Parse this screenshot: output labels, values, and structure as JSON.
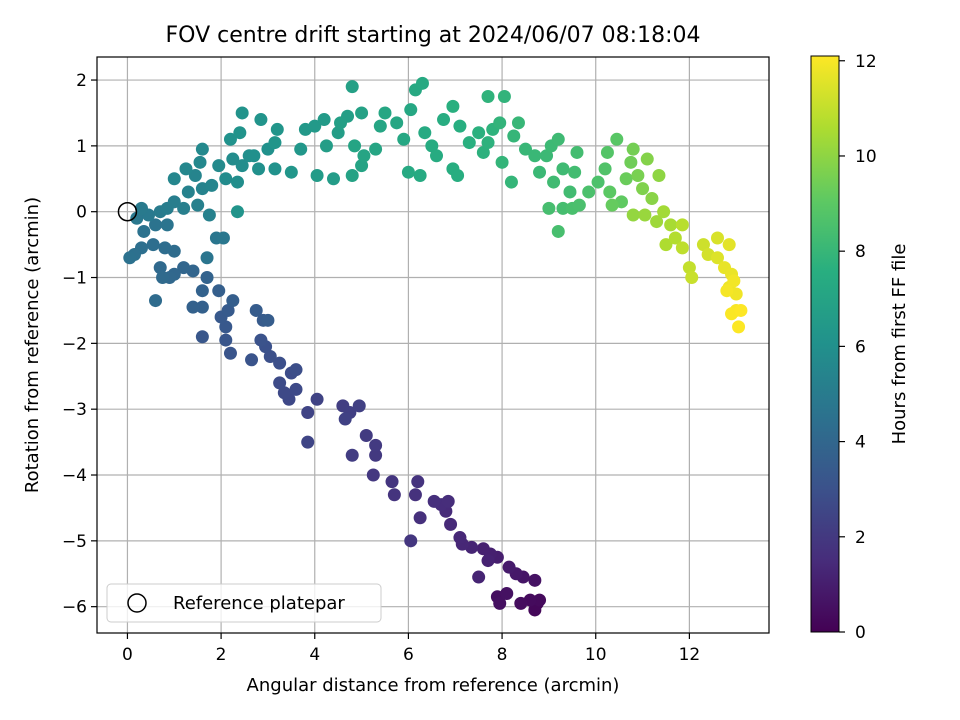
{
  "chart_data": {
    "type": "scatter",
    "title": "FOV centre drift starting at 2024/06/07 08:18:04",
    "xlabel": "Angular distance from reference (arcmin)",
    "ylabel": "Rotation from reference (arcmin)",
    "xlim": [
      -0.65,
      13.7
    ],
    "ylim": [
      -6.4,
      2.35
    ],
    "xticks": [
      0,
      2,
      4,
      6,
      8,
      10,
      12
    ],
    "yticks": [
      -6,
      -5,
      -4,
      -3,
      -2,
      -1,
      0,
      1,
      2
    ],
    "grid": true,
    "colormap": "viridis",
    "colorbar": {
      "label": "Hours from first FF file",
      "range": [
        0,
        12.1
      ],
      "ticks": [
        0,
        2,
        4,
        6,
        8,
        10,
        12
      ]
    },
    "legend": {
      "position": "lower-left",
      "entries": [
        {
          "label": "Reference platepar",
          "marker": "open-circle",
          "color": "#000000"
        }
      ]
    },
    "reference_point": {
      "x": 0,
      "y": 0
    },
    "points": [
      {
        "x": 8.75,
        "y": -5.95,
        "t": 0.1
      },
      {
        "x": 8.7,
        "y": -6.05,
        "t": 0.2
      },
      {
        "x": 8.8,
        "y": -5.9,
        "t": 0.3
      },
      {
        "x": 8.6,
        "y": -5.9,
        "t": 0.35
      },
      {
        "x": 8.4,
        "y": -5.95,
        "t": 0.4
      },
      {
        "x": 7.9,
        "y": -5.85,
        "t": 0.45
      },
      {
        "x": 7.95,
        "y": -5.95,
        "t": 0.5
      },
      {
        "x": 8.1,
        "y": -5.8,
        "t": 0.55
      },
      {
        "x": 8.7,
        "y": -5.6,
        "t": 0.6
      },
      {
        "x": 8.45,
        "y": -5.55,
        "t": 0.7
      },
      {
        "x": 8.3,
        "y": -5.5,
        "t": 0.8
      },
      {
        "x": 8.15,
        "y": -5.4,
        "t": 0.9
      },
      {
        "x": 7.9,
        "y": -5.25,
        "t": 1.0
      },
      {
        "x": 7.75,
        "y": -5.2,
        "t": 1.05
      },
      {
        "x": 7.6,
        "y": -5.12,
        "t": 1.1
      },
      {
        "x": 7.7,
        "y": -5.3,
        "t": 1.15
      },
      {
        "x": 7.5,
        "y": -5.55,
        "t": 1.2
      },
      {
        "x": 7.35,
        "y": -5.1,
        "t": 1.25
      },
      {
        "x": 7.15,
        "y": -5.05,
        "t": 1.3
      },
      {
        "x": 7.1,
        "y": -4.95,
        "t": 1.35
      },
      {
        "x": 6.9,
        "y": -4.75,
        "t": 1.4
      },
      {
        "x": 6.8,
        "y": -4.55,
        "t": 1.45
      },
      {
        "x": 6.7,
        "y": -4.45,
        "t": 1.5
      },
      {
        "x": 6.85,
        "y": -4.4,
        "t": 1.55
      },
      {
        "x": 6.55,
        "y": -4.4,
        "t": 1.6
      },
      {
        "x": 6.25,
        "y": -4.65,
        "t": 1.65
      },
      {
        "x": 6.15,
        "y": -4.3,
        "t": 1.7
      },
      {
        "x": 6.2,
        "y": -4.1,
        "t": 1.75
      },
      {
        "x": 5.7,
        "y": -4.3,
        "t": 1.8
      },
      {
        "x": 5.65,
        "y": -4.1,
        "t": 1.85
      },
      {
        "x": 6.05,
        "y": -5.0,
        "t": 1.9
      },
      {
        "x": 5.25,
        "y": -4.0,
        "t": 1.95
      },
      {
        "x": 5.3,
        "y": -3.7,
        "t": 2.0
      },
      {
        "x": 5.3,
        "y": -3.55,
        "t": 2.05
      },
      {
        "x": 5.1,
        "y": -3.4,
        "t": 2.1
      },
      {
        "x": 4.8,
        "y": -3.7,
        "t": 2.15
      },
      {
        "x": 4.6,
        "y": -2.95,
        "t": 2.2
      },
      {
        "x": 4.75,
        "y": -3.05,
        "t": 2.25
      },
      {
        "x": 4.95,
        "y": -2.95,
        "t": 2.3
      },
      {
        "x": 4.65,
        "y": -3.15,
        "t": 2.35
      },
      {
        "x": 4.05,
        "y": -2.85,
        "t": 2.4
      },
      {
        "x": 3.85,
        "y": -3.05,
        "t": 2.45
      },
      {
        "x": 3.85,
        "y": -3.5,
        "t": 2.5
      },
      {
        "x": 3.45,
        "y": -2.85,
        "t": 2.6
      },
      {
        "x": 3.35,
        "y": -2.75,
        "t": 2.65
      },
      {
        "x": 3.6,
        "y": -2.7,
        "t": 2.7
      },
      {
        "x": 3.25,
        "y": -2.6,
        "t": 2.75
      },
      {
        "x": 3.5,
        "y": -2.45,
        "t": 2.8
      },
      {
        "x": 3.6,
        "y": -2.4,
        "t": 2.85
      },
      {
        "x": 3.25,
        "y": -2.3,
        "t": 2.9
      },
      {
        "x": 3.05,
        "y": -2.2,
        "t": 2.95
      },
      {
        "x": 2.95,
        "y": -2.05,
        "t": 3.0
      },
      {
        "x": 2.85,
        "y": -1.95,
        "t": 3.05
      },
      {
        "x": 2.65,
        "y": -2.25,
        "t": 3.1
      },
      {
        "x": 2.2,
        "y": -2.15,
        "t": 3.15
      },
      {
        "x": 2.1,
        "y": -1.95,
        "t": 3.2
      },
      {
        "x": 1.6,
        "y": -1.9,
        "t": 3.25
      },
      {
        "x": 2.1,
        "y": -1.75,
        "t": 3.3
      },
      {
        "x": 2.0,
        "y": -1.6,
        "t": 3.35
      },
      {
        "x": 2.15,
        "y": -1.5,
        "t": 3.4
      },
      {
        "x": 2.9,
        "y": -1.65,
        "t": 3.45
      },
      {
        "x": 2.75,
        "y": -1.5,
        "t": 3.5
      },
      {
        "x": 3.0,
        "y": -1.65,
        "t": 3.55
      },
      {
        "x": 2.25,
        "y": -1.35,
        "t": 3.6
      },
      {
        "x": 1.95,
        "y": -1.2,
        "t": 3.65
      },
      {
        "x": 1.6,
        "y": -1.45,
        "t": 3.7
      },
      {
        "x": 1.4,
        "y": -1.45,
        "t": 3.75
      },
      {
        "x": 1.6,
        "y": -1.2,
        "t": 3.8
      },
      {
        "x": 1.7,
        "y": -1.0,
        "t": 3.85
      },
      {
        "x": 1.4,
        "y": -0.9,
        "t": 3.9
      },
      {
        "x": 1.2,
        "y": -0.85,
        "t": 3.95
      },
      {
        "x": 1.0,
        "y": -0.95,
        "t": 4.0
      },
      {
        "x": 0.9,
        "y": -1.0,
        "t": 4.05
      },
      {
        "x": 0.7,
        "y": -0.85,
        "t": 4.1
      },
      {
        "x": 0.75,
        "y": -1.0,
        "t": 4.15
      },
      {
        "x": 0.6,
        "y": -1.35,
        "t": 4.2
      },
      {
        "x": 1.0,
        "y": -0.6,
        "t": 4.25
      },
      {
        "x": 0.8,
        "y": -0.55,
        "t": 4.3
      },
      {
        "x": 0.55,
        "y": -0.5,
        "t": 4.35
      },
      {
        "x": 0.3,
        "y": -0.55,
        "t": 4.4
      },
      {
        "x": 0.15,
        "y": -0.65,
        "t": 4.45
      },
      {
        "x": 0.05,
        "y": -0.7,
        "t": 4.5
      },
      {
        "x": 0.35,
        "y": -0.3,
        "t": 4.55
      },
      {
        "x": 0.6,
        "y": -0.2,
        "t": 4.6
      },
      {
        "x": 0.85,
        "y": -0.2,
        "t": 4.65
      },
      {
        "x": 1.7,
        "y": -0.7,
        "t": 4.7
      },
      {
        "x": 1.9,
        "y": -0.4,
        "t": 4.75
      },
      {
        "x": 2.05,
        "y": -0.4,
        "t": 4.8
      },
      {
        "x": 0.2,
        "y": -0.1,
        "t": 4.85
      },
      {
        "x": 0.45,
        "y": -0.05,
        "t": 4.9
      },
      {
        "x": 0.3,
        "y": 0.05,
        "t": 4.95
      },
      {
        "x": 0.7,
        "y": 0.0,
        "t": 5.0
      },
      {
        "x": 0.85,
        "y": 0.05,
        "t": 5.05
      },
      {
        "x": 1.0,
        "y": 0.15,
        "t": 5.1
      },
      {
        "x": 1.2,
        "y": 0.05,
        "t": 5.15
      },
      {
        "x": 1.5,
        "y": 0.1,
        "t": 5.2
      },
      {
        "x": 1.75,
        "y": -0.05,
        "t": 5.25
      },
      {
        "x": 1.3,
        "y": 0.3,
        "t": 5.3
      },
      {
        "x": 1.6,
        "y": 0.35,
        "t": 5.35
      },
      {
        "x": 1.45,
        "y": 0.55,
        "t": 5.4
      },
      {
        "x": 1.8,
        "y": 0.4,
        "t": 5.45
      },
      {
        "x": 1.0,
        "y": 0.5,
        "t": 5.5
      },
      {
        "x": 1.25,
        "y": 0.65,
        "t": 5.55
      },
      {
        "x": 1.55,
        "y": 0.75,
        "t": 5.6
      },
      {
        "x": 1.6,
        "y": 0.95,
        "t": 5.65
      },
      {
        "x": 1.95,
        "y": 0.7,
        "t": 5.7
      },
      {
        "x": 2.1,
        "y": 0.5,
        "t": 5.75
      },
      {
        "x": 2.25,
        "y": 0.8,
        "t": 5.8
      },
      {
        "x": 2.45,
        "y": 0.7,
        "t": 5.85
      },
      {
        "x": 2.35,
        "y": 0.45,
        "t": 5.9
      },
      {
        "x": 2.6,
        "y": 0.85,
        "t": 5.95
      },
      {
        "x": 2.8,
        "y": 0.65,
        "t": 6.0
      },
      {
        "x": 2.7,
        "y": 0.85,
        "t": 6.02
      },
      {
        "x": 3.0,
        "y": 0.95,
        "t": 6.05
      },
      {
        "x": 3.15,
        "y": 0.65,
        "t": 6.08
      },
      {
        "x": 2.2,
        "y": 1.1,
        "t": 6.1
      },
      {
        "x": 2.4,
        "y": 1.2,
        "t": 6.13
      },
      {
        "x": 2.45,
        "y": 1.5,
        "t": 6.16
      },
      {
        "x": 2.85,
        "y": 1.4,
        "t": 6.2
      },
      {
        "x": 2.35,
        "y": 0.0,
        "t": 6.22
      },
      {
        "x": 3.2,
        "y": 1.25,
        "t": 6.25
      },
      {
        "x": 3.15,
        "y": 1.05,
        "t": 6.28
      },
      {
        "x": 3.5,
        "y": 0.6,
        "t": 6.32
      },
      {
        "x": 3.7,
        "y": 0.95,
        "t": 6.35
      },
      {
        "x": 3.8,
        "y": 1.25,
        "t": 6.4
      },
      {
        "x": 4.0,
        "y": 1.3,
        "t": 6.45
      },
      {
        "x": 4.2,
        "y": 1.4,
        "t": 6.5
      },
      {
        "x": 4.05,
        "y": 0.55,
        "t": 6.55
      },
      {
        "x": 4.4,
        "y": 0.5,
        "t": 6.6
      },
      {
        "x": 4.25,
        "y": 1.0,
        "t": 6.65
      },
      {
        "x": 4.5,
        "y": 1.2,
        "t": 6.7
      },
      {
        "x": 4.7,
        "y": 1.45,
        "t": 6.75
      },
      {
        "x": 4.55,
        "y": 1.35,
        "t": 6.8
      },
      {
        "x": 4.8,
        "y": 1.9,
        "t": 6.85
      },
      {
        "x": 5.0,
        "y": 1.5,
        "t": 6.9
      },
      {
        "x": 4.8,
        "y": 0.55,
        "t": 6.95
      },
      {
        "x": 5.0,
        "y": 0.7,
        "t": 7.0
      },
      {
        "x": 4.85,
        "y": 1.0,
        "t": 7.02
      },
      {
        "x": 5.05,
        "y": 0.85,
        "t": 7.05
      },
      {
        "x": 5.3,
        "y": 0.95,
        "t": 7.08
      },
      {
        "x": 5.4,
        "y": 1.3,
        "t": 7.1
      },
      {
        "x": 5.5,
        "y": 1.5,
        "t": 7.13
      },
      {
        "x": 5.75,
        "y": 1.35,
        "t": 7.16
      },
      {
        "x": 5.9,
        "y": 1.1,
        "t": 7.2
      },
      {
        "x": 6.05,
        "y": 1.55,
        "t": 7.22
      },
      {
        "x": 6.15,
        "y": 1.85,
        "t": 7.25
      },
      {
        "x": 6.3,
        "y": 1.95,
        "t": 7.28
      },
      {
        "x": 6.0,
        "y": 0.6,
        "t": 7.3
      },
      {
        "x": 6.25,
        "y": 0.55,
        "t": 7.33
      },
      {
        "x": 6.35,
        "y": 1.2,
        "t": 7.36
      },
      {
        "x": 6.5,
        "y": 1.0,
        "t": 7.4
      },
      {
        "x": 6.6,
        "y": 0.85,
        "t": 7.43
      },
      {
        "x": 6.75,
        "y": 1.4,
        "t": 7.46
      },
      {
        "x": 6.95,
        "y": 0.65,
        "t": 7.5
      },
      {
        "x": 7.05,
        "y": 0.55,
        "t": 7.53
      },
      {
        "x": 7.1,
        "y": 1.3,
        "t": 7.56
      },
      {
        "x": 6.95,
        "y": 1.6,
        "t": 7.6
      },
      {
        "x": 7.3,
        "y": 1.05,
        "t": 7.63
      },
      {
        "x": 7.5,
        "y": 1.2,
        "t": 7.66
      },
      {
        "x": 7.6,
        "y": 0.9,
        "t": 7.7
      },
      {
        "x": 7.7,
        "y": 1.05,
        "t": 7.73
      },
      {
        "x": 7.8,
        "y": 1.25,
        "t": 7.76
      },
      {
        "x": 7.7,
        "y": 1.75,
        "t": 7.8
      },
      {
        "x": 8.05,
        "y": 1.75,
        "t": 7.83
      },
      {
        "x": 7.95,
        "y": 1.35,
        "t": 7.86
      },
      {
        "x": 8.0,
        "y": 0.75,
        "t": 7.9
      },
      {
        "x": 8.2,
        "y": 0.45,
        "t": 7.93
      },
      {
        "x": 8.25,
        "y": 1.15,
        "t": 7.96
      },
      {
        "x": 8.35,
        "y": 1.35,
        "t": 8.0
      },
      {
        "x": 8.5,
        "y": 0.95,
        "t": 8.03
      },
      {
        "x": 8.7,
        "y": 0.85,
        "t": 8.06
      },
      {
        "x": 8.8,
        "y": 0.6,
        "t": 8.1
      },
      {
        "x": 8.95,
        "y": 0.85,
        "t": 8.13
      },
      {
        "x": 9.05,
        "y": 1.0,
        "t": 8.16
      },
      {
        "x": 9.2,
        "y": 1.1,
        "t": 8.2
      },
      {
        "x": 9.3,
        "y": 0.65,
        "t": 8.23
      },
      {
        "x": 9.1,
        "y": 0.45,
        "t": 8.26
      },
      {
        "x": 9.45,
        "y": 0.3,
        "t": 8.3
      },
      {
        "x": 9.55,
        "y": 0.6,
        "t": 8.33
      },
      {
        "x": 9.6,
        "y": 0.9,
        "t": 8.36
      },
      {
        "x": 9.3,
        "y": 0.05,
        "t": 8.4
      },
      {
        "x": 9.0,
        "y": 0.05,
        "t": 8.43
      },
      {
        "x": 9.2,
        "y": -0.3,
        "t": 8.46
      },
      {
        "x": 9.5,
        "y": 0.05,
        "t": 8.5
      },
      {
        "x": 9.65,
        "y": 0.1,
        "t": 8.53
      },
      {
        "x": 9.85,
        "y": 0.3,
        "t": 8.56
      },
      {
        "x": 10.05,
        "y": 0.45,
        "t": 8.6
      },
      {
        "x": 10.2,
        "y": 0.65,
        "t": 8.7
      },
      {
        "x": 10.25,
        "y": 0.9,
        "t": 8.8
      },
      {
        "x": 10.45,
        "y": 1.1,
        "t": 8.9
      },
      {
        "x": 10.3,
        "y": 0.3,
        "t": 9.0
      },
      {
        "x": 10.55,
        "y": 0.15,
        "t": 9.1
      },
      {
        "x": 10.35,
        "y": 0.1,
        "t": 9.2
      },
      {
        "x": 10.65,
        "y": 0.5,
        "t": 9.3
      },
      {
        "x": 10.75,
        "y": 0.75,
        "t": 9.4
      },
      {
        "x": 10.8,
        "y": 0.95,
        "t": 9.5
      },
      {
        "x": 10.9,
        "y": 0.55,
        "t": 9.6
      },
      {
        "x": 11.0,
        "y": 0.35,
        "t": 9.7
      },
      {
        "x": 11.1,
        "y": 0.8,
        "t": 9.8
      },
      {
        "x": 11.2,
        "y": 0.2,
        "t": 9.9
      },
      {
        "x": 11.35,
        "y": 0.55,
        "t": 10.0
      },
      {
        "x": 10.8,
        "y": -0.05,
        "t": 10.1
      },
      {
        "x": 11.05,
        "y": -0.05,
        "t": 10.2
      },
      {
        "x": 11.3,
        "y": -0.15,
        "t": 10.3
      },
      {
        "x": 11.45,
        "y": 0.0,
        "t": 10.4
      },
      {
        "x": 11.6,
        "y": -0.2,
        "t": 10.5
      },
      {
        "x": 11.5,
        "y": -0.5,
        "t": 10.6
      },
      {
        "x": 11.7,
        "y": -0.4,
        "t": 10.7
      },
      {
        "x": 11.85,
        "y": -0.2,
        "t": 10.8
      },
      {
        "x": 11.85,
        "y": -0.55,
        "t": 10.9
      },
      {
        "x": 12.0,
        "y": -0.85,
        "t": 11.0
      },
      {
        "x": 12.05,
        "y": -1.0,
        "t": 11.1
      },
      {
        "x": 12.3,
        "y": -0.5,
        "t": 11.2
      },
      {
        "x": 12.4,
        "y": -0.65,
        "t": 11.3
      },
      {
        "x": 12.6,
        "y": -0.4,
        "t": 11.4
      },
      {
        "x": 12.6,
        "y": -0.7,
        "t": 11.5
      },
      {
        "x": 12.85,
        "y": -0.5,
        "t": 11.6
      },
      {
        "x": 12.75,
        "y": -0.85,
        "t": 11.7
      },
      {
        "x": 12.9,
        "y": -0.95,
        "t": 11.75
      },
      {
        "x": 12.85,
        "y": -1.15,
        "t": 11.8
      },
      {
        "x": 13.0,
        "y": -1.25,
        "t": 11.85
      },
      {
        "x": 12.95,
        "y": -1.05,
        "t": 11.9
      },
      {
        "x": 12.8,
        "y": -1.2,
        "t": 11.95
      },
      {
        "x": 13.0,
        "y": -1.5,
        "t": 12.0
      },
      {
        "x": 12.9,
        "y": -1.55,
        "t": 12.05
      },
      {
        "x": 13.05,
        "y": -1.75,
        "t": 12.08
      },
      {
        "x": 13.1,
        "y": -1.5,
        "t": 12.1
      }
    ]
  }
}
